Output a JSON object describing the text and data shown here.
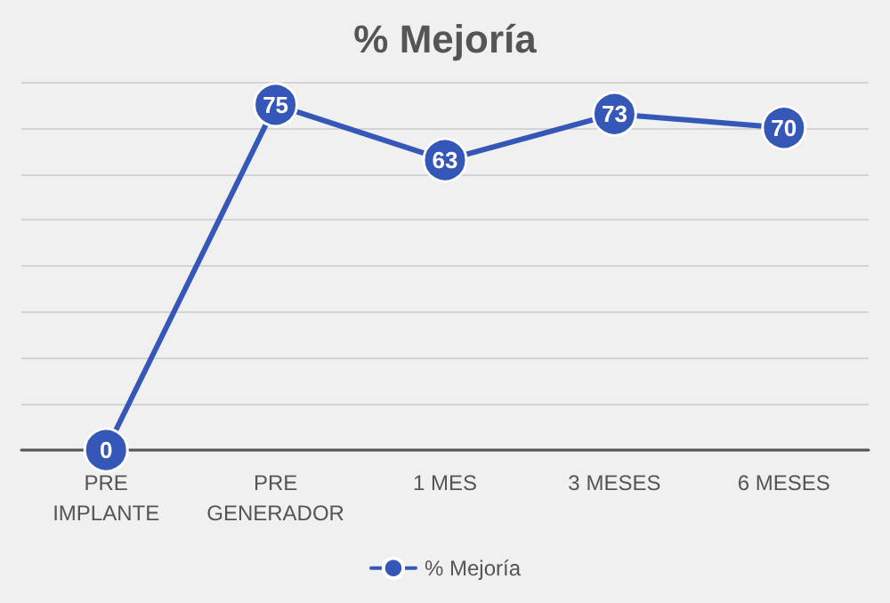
{
  "chart_data": {
    "type": "line",
    "title": "% Mejoría",
    "categories": [
      "PRE\nIMPLANTE",
      "PRE\nGENERADOR",
      "1 MES",
      "3 MESES",
      "6 MESES"
    ],
    "series": [
      {
        "name": "% Mejoría",
        "color": "#3557b7",
        "values": [
          0,
          75,
          63,
          73,
          70
        ]
      }
    ],
    "ylim": [
      0,
      80
    ],
    "yticks": [
      0,
      10,
      20,
      30,
      40,
      50,
      60,
      70,
      80
    ],
    "tick_labels": "x",
    "grid": "y",
    "legend": "bottom",
    "marker": "circle",
    "data_labels": true
  }
}
